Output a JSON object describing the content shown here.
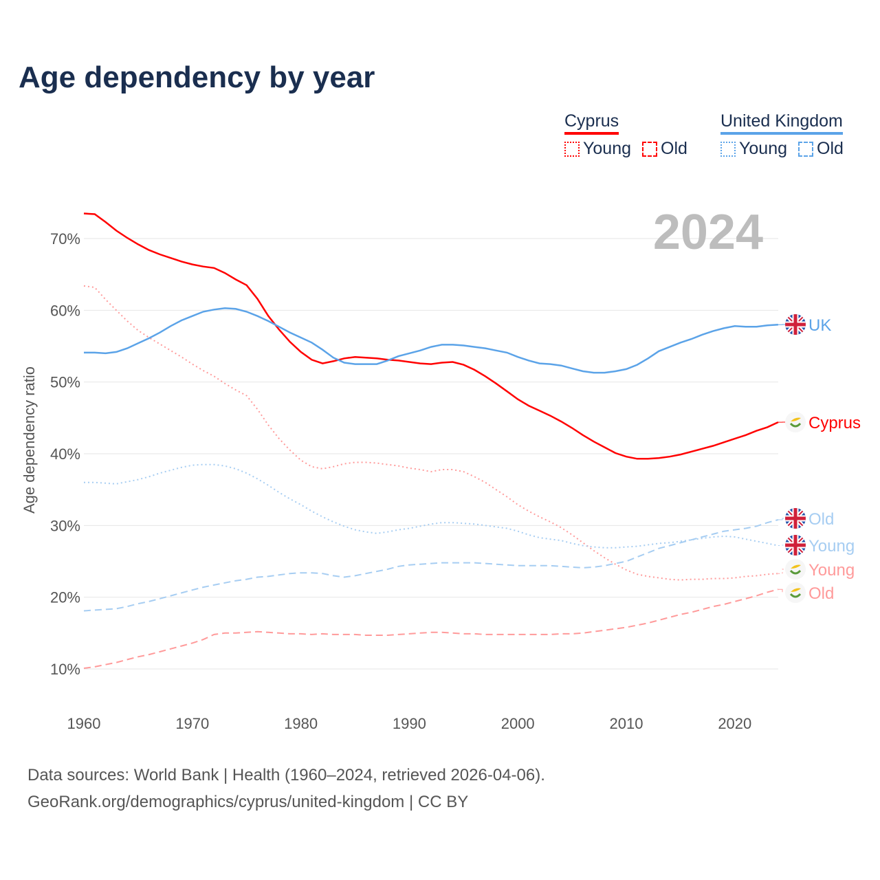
{
  "chart_data": {
    "type": "line",
    "title": "Age dependency by year",
    "ylabel": "Age dependency ratio",
    "xlabel": "",
    "year_watermark": "2024",
    "xlim": [
      1960,
      2024
    ],
    "ylim": [
      5,
      75
    ],
    "x_ticks": [
      1960,
      1970,
      1980,
      1990,
      2000,
      2010,
      2020
    ],
    "y_ticks": [
      10,
      20,
      30,
      40,
      50,
      60,
      70
    ],
    "y_tick_labels": [
      "10%",
      "20%",
      "30%",
      "40%",
      "50%",
      "60%",
      "70%"
    ],
    "grid": true,
    "legend_position": "top-right",
    "legend": [
      {
        "country": "Cyprus",
        "color": "#ff0000",
        "items": [
          "Young",
          "Old"
        ]
      },
      {
        "country": "United Kingdom",
        "color": "#5ba3e8",
        "items": [
          "Young",
          "Old"
        ]
      }
    ],
    "x_start": 1960,
    "series": [
      {
        "name": "Cyprus",
        "end_label": "Cyprus",
        "flag": "cyprus-flag",
        "color": "#ff0000",
        "style": "solid",
        "values": [
          73.5,
          73.4,
          72.3,
          71.1,
          70.1,
          69.2,
          68.4,
          67.8,
          67.3,
          66.8,
          66.4,
          66.1,
          65.9,
          65.2,
          64.3,
          63.5,
          61.6,
          59.2,
          57.3,
          55.6,
          54.2,
          53.1,
          52.6,
          52.9,
          53.3,
          53.5,
          53.4,
          53.3,
          53.1,
          53.0,
          52.8,
          52.6,
          52.5,
          52.7,
          52.8,
          52.4,
          51.7,
          50.8,
          49.8,
          48.7,
          47.6,
          46.7,
          46.0,
          45.3,
          44.5,
          43.6,
          42.6,
          41.7,
          40.9,
          40.1,
          39.6,
          39.3,
          39.3,
          39.4,
          39.6,
          39.9,
          40.3,
          40.7,
          41.1,
          41.6,
          42.1,
          42.6,
          43.2,
          43.7,
          44.4
        ]
      },
      {
        "name": "Cyprus Young",
        "end_label": "Young",
        "flag": "cyprus-flag",
        "color": "#ff9a9a",
        "style": "dotted",
        "values": [
          63.4,
          63.2,
          61.5,
          60.0,
          58.5,
          57.2,
          56.2,
          55.3,
          54.4,
          53.5,
          52.5,
          51.6,
          50.8,
          49.8,
          48.9,
          48.1,
          46.2,
          44.0,
          42.1,
          40.5,
          39.1,
          38.2,
          37.9,
          38.2,
          38.6,
          38.8,
          38.8,
          38.7,
          38.5,
          38.3,
          38.0,
          37.8,
          37.5,
          37.8,
          37.8,
          37.5,
          36.8,
          36.0,
          35.0,
          34.0,
          32.9,
          32.0,
          31.2,
          30.5,
          29.7,
          28.7,
          27.6,
          26.5,
          25.5,
          24.6,
          23.8,
          23.2,
          22.9,
          22.7,
          22.5,
          22.4,
          22.5,
          22.5,
          22.6,
          22.6,
          22.7,
          22.9,
          23.0,
          23.2,
          23.3
        ]
      },
      {
        "name": "Cyprus Old",
        "end_label": "Old",
        "flag": "cyprus-flag",
        "color": "#ff9a9a",
        "style": "dashed",
        "values": [
          10.1,
          10.3,
          10.6,
          10.9,
          11.3,
          11.7,
          12.0,
          12.4,
          12.8,
          13.2,
          13.6,
          14.1,
          14.8,
          15.0,
          15.0,
          15.1,
          15.2,
          15.1,
          15.0,
          14.9,
          14.9,
          14.8,
          14.9,
          14.8,
          14.8,
          14.8,
          14.7,
          14.7,
          14.7,
          14.8,
          14.9,
          15.0,
          15.1,
          15.1,
          15.0,
          14.9,
          14.9,
          14.8,
          14.8,
          14.8,
          14.8,
          14.8,
          14.8,
          14.8,
          14.9,
          14.9,
          15.0,
          15.2,
          15.4,
          15.6,
          15.8,
          16.1,
          16.4,
          16.8,
          17.2,
          17.6,
          17.9,
          18.3,
          18.7,
          19.0,
          19.4,
          19.8,
          20.2,
          20.7,
          21.1
        ]
      },
      {
        "name": "United Kingdom",
        "end_label": "UK",
        "flag": "uk-flag",
        "color": "#5ba3e8",
        "style": "solid",
        "values": [
          54.1,
          54.1,
          54.0,
          54.2,
          54.7,
          55.4,
          56.1,
          56.9,
          57.8,
          58.6,
          59.2,
          59.8,
          60.1,
          60.3,
          60.2,
          59.8,
          59.2,
          58.5,
          57.7,
          56.9,
          56.2,
          55.5,
          54.5,
          53.4,
          52.7,
          52.5,
          52.5,
          52.5,
          53.0,
          53.6,
          54.0,
          54.4,
          54.9,
          55.2,
          55.2,
          55.1,
          54.9,
          54.7,
          54.4,
          54.1,
          53.5,
          53.0,
          52.6,
          52.5,
          52.3,
          51.9,
          51.5,
          51.3,
          51.3,
          51.5,
          51.8,
          52.4,
          53.3,
          54.3,
          54.9,
          55.5,
          56.0,
          56.6,
          57.1,
          57.5,
          57.8,
          57.7,
          57.7,
          57.9,
          58.0
        ]
      },
      {
        "name": "United Kingdom Young",
        "end_label": "Young",
        "flag": "uk-flag",
        "color": "#a6cdf2",
        "style": "dotted",
        "values": [
          36.0,
          36.0,
          35.9,
          35.8,
          36.1,
          36.4,
          36.8,
          37.3,
          37.7,
          38.1,
          38.4,
          38.5,
          38.5,
          38.3,
          37.9,
          37.3,
          36.5,
          35.6,
          34.6,
          33.7,
          32.9,
          32.0,
          31.2,
          30.5,
          29.9,
          29.4,
          29.1,
          28.9,
          29.1,
          29.4,
          29.6,
          29.9,
          30.2,
          30.4,
          30.4,
          30.3,
          30.2,
          30.0,
          29.8,
          29.6,
          29.2,
          28.7,
          28.3,
          28.1,
          27.9,
          27.5,
          27.2,
          27.0,
          26.9,
          26.9,
          27.0,
          27.1,
          27.3,
          27.5,
          27.6,
          27.8,
          28.0,
          28.2,
          28.4,
          28.5,
          28.4,
          28.1,
          27.8,
          27.5,
          27.2
        ]
      },
      {
        "name": "United Kingdom Old",
        "end_label": "Old",
        "flag": "uk-flag",
        "color": "#a6cdf2",
        "style": "dashed",
        "values": [
          18.1,
          18.2,
          18.3,
          18.4,
          18.7,
          19.1,
          19.4,
          19.8,
          20.2,
          20.6,
          21.0,
          21.4,
          21.7,
          22.0,
          22.3,
          22.5,
          22.8,
          22.9,
          23.1,
          23.3,
          23.4,
          23.4,
          23.3,
          23.0,
          22.8,
          23.0,
          23.3,
          23.6,
          23.9,
          24.3,
          24.5,
          24.6,
          24.7,
          24.8,
          24.8,
          24.8,
          24.8,
          24.7,
          24.6,
          24.5,
          24.4,
          24.4,
          24.4,
          24.4,
          24.3,
          24.2,
          24.1,
          24.2,
          24.4,
          24.7,
          25.0,
          25.6,
          26.2,
          26.8,
          27.2,
          27.6,
          28.0,
          28.4,
          28.8,
          29.2,
          29.4,
          29.6,
          29.9,
          30.4,
          30.8
        ]
      }
    ]
  },
  "footer": {
    "line1": "Data sources: World Bank | Health (1960–2024, retrieved 2026-04-06).",
    "line2": "GeoRank.org/demographics/cyprus/united-kingdom | CC BY"
  }
}
